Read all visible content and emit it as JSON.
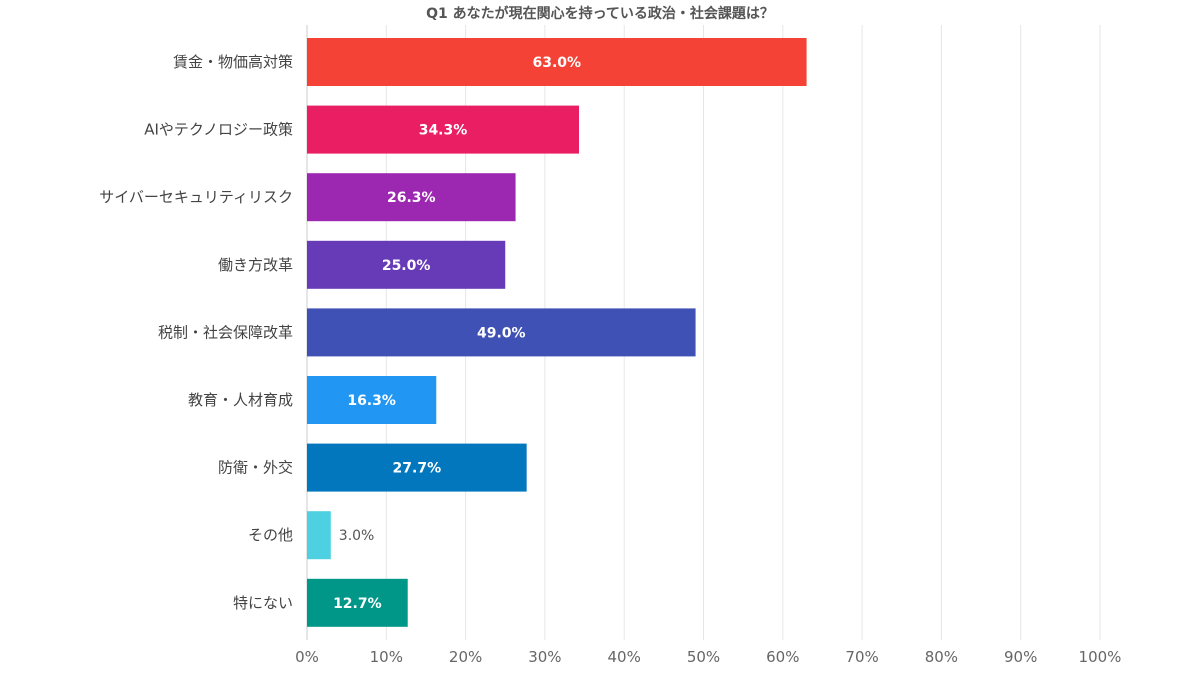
{
  "chart_data": {
    "type": "bar",
    "orientation": "horizontal",
    "title": "Q1 あなたが現在関心を持っている政治・社会課題は？",
    "xlabel": "",
    "ylabel": "",
    "xlim": [
      0,
      100
    ],
    "grid": true,
    "categories": [
      "賃金・物価高対策",
      "AIやテクノロジー政策",
      "サイバーセキュリティリスク",
      "働き方改革",
      "税制・社会保障改革",
      "教育・人材育成",
      "防衛・外交",
      "その他",
      "特にない"
    ],
    "values": [
      63.0,
      34.3,
      26.3,
      25.0,
      49.0,
      16.3,
      27.7,
      3.0,
      12.7
    ],
    "value_labels": [
      "63.0%",
      "34.3%",
      "26.3%",
      "25.0%",
      "49.0%",
      "16.3%",
      "27.7%",
      "3.0%",
      "12.7%"
    ],
    "colors": [
      "#f44336",
      "#e91e63",
      "#9c27b0",
      "#673ab7",
      "#3f51b5",
      "#2196f3",
      "#0277bd",
      "#4dd0e1",
      "#009688"
    ],
    "x_ticks": [
      "0%",
      "10%",
      "20%",
      "30%",
      "40%",
      "50%",
      "60%",
      "70%",
      "80%",
      "90%",
      "100%"
    ]
  }
}
